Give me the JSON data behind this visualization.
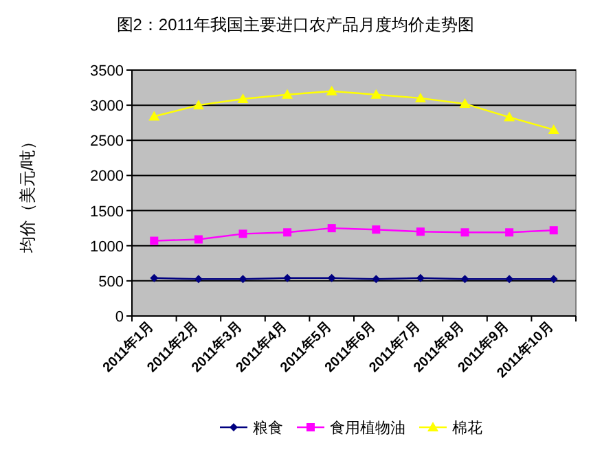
{
  "chart_data": {
    "type": "line",
    "title": "图2：2011年我国主要进口农产品月度均价走势图",
    "ylabel": "均价（美元/吨）",
    "categories": [
      "2011年1月",
      "2011年2月",
      "2011年3月",
      "2011年4月",
      "2011年5月",
      "2011年6月",
      "2011年7月",
      "2011年8月",
      "2011年9月",
      "2011年10月"
    ],
    "series": [
      {
        "name": "粮食",
        "color": "#000080",
        "marker": "diamond",
        "values": [
          540,
          525,
          525,
          540,
          540,
          525,
          540,
          525,
          525,
          525
        ]
      },
      {
        "name": "食用植物油",
        "color": "#ff00ff",
        "marker": "square",
        "values": [
          1070,
          1090,
          1170,
          1190,
          1250,
          1230,
          1200,
          1190,
          1190,
          1220
        ]
      },
      {
        "name": "棉花",
        "color": "#ffff00",
        "marker": "triangle",
        "values": [
          2840,
          3000,
          3090,
          3150,
          3200,
          3150,
          3100,
          3020,
          2830,
          2650
        ]
      }
    ],
    "ylim": [
      0,
      3500
    ],
    "yticks": [
      0,
      500,
      1000,
      1500,
      2000,
      2500,
      3000,
      3500
    ],
    "grid": "y",
    "legend": "bottom"
  }
}
